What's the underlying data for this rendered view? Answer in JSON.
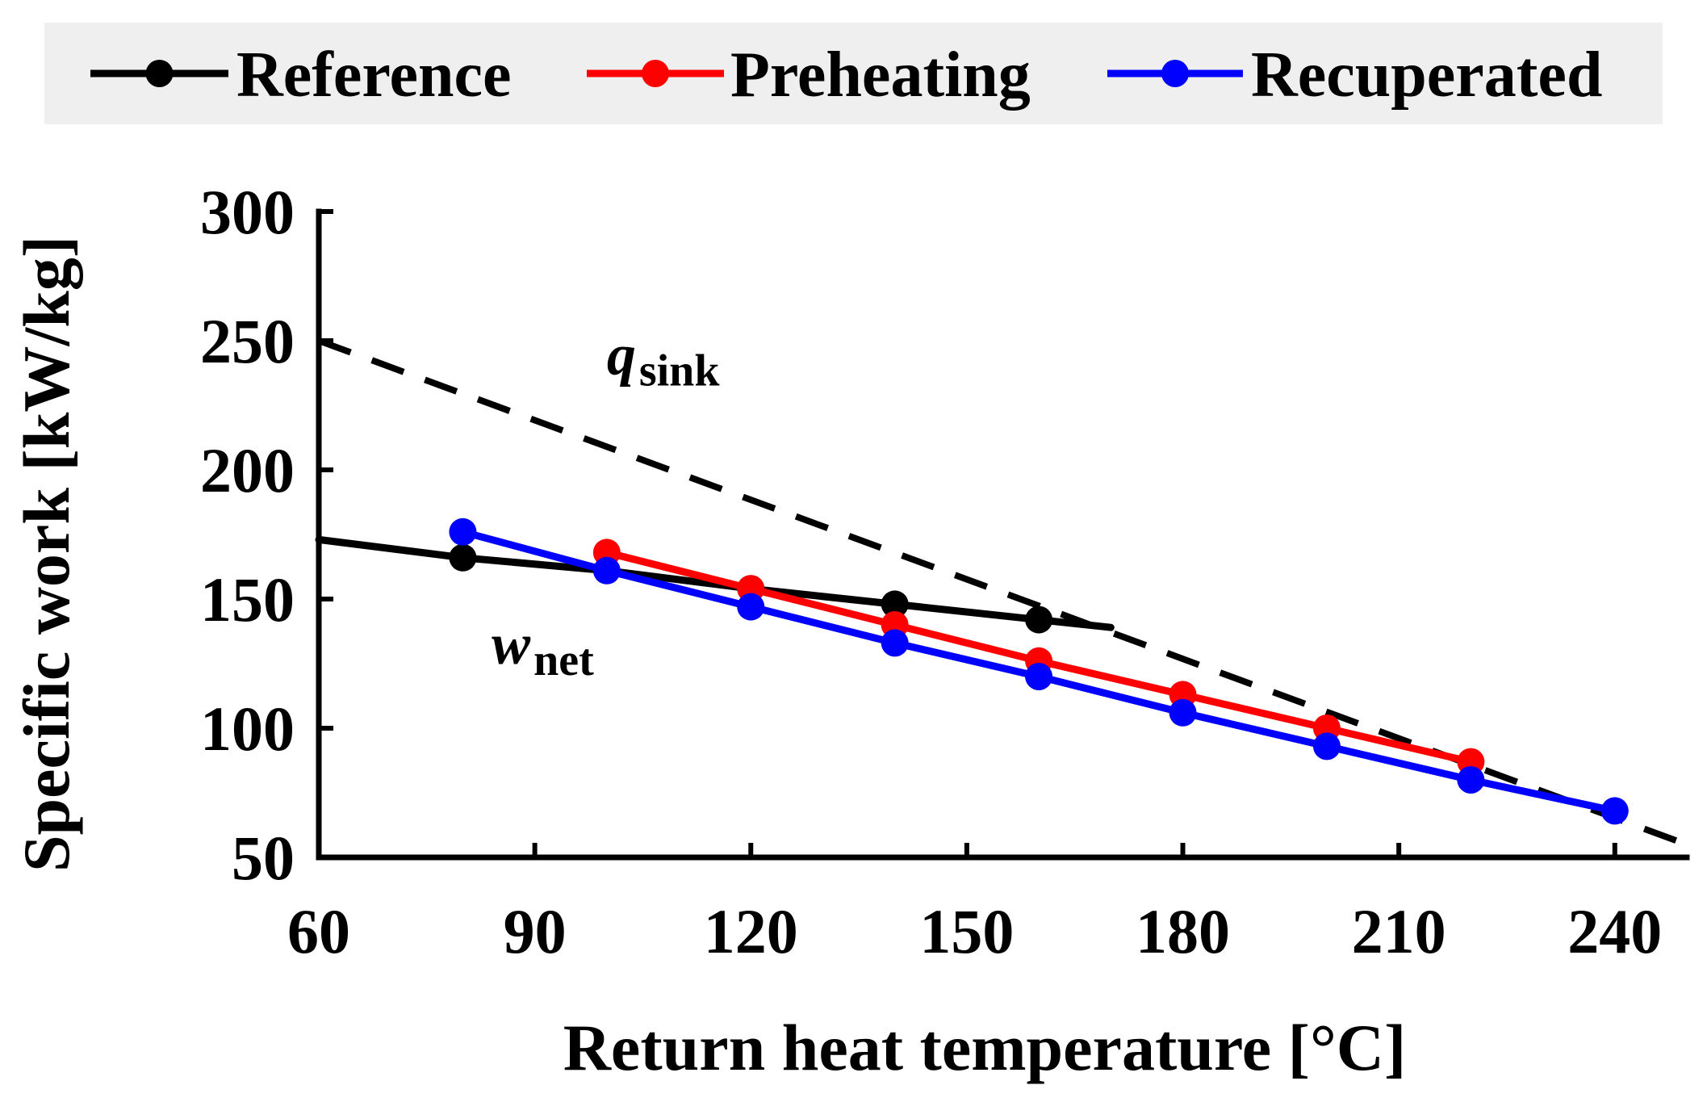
{
  "chart_data": {
    "type": "line",
    "title": "",
    "xlabel": "Return heat temperature [°C]",
    "ylabel": "Specific work [kW/kg]",
    "xlim": [
      60,
      250
    ],
    "ylim": [
      50,
      300
    ],
    "xticks": [
      60,
      90,
      120,
      150,
      180,
      210,
      240
    ],
    "yticks": [
      50,
      100,
      150,
      200,
      250,
      300
    ],
    "xtick_labels": [
      "60",
      "90",
      "120",
      "150",
      "180",
      "210",
      "240"
    ],
    "ytick_labels": [
      "50",
      "100",
      "150",
      "200",
      "250",
      "300"
    ],
    "legend_position": "top",
    "series": [
      {
        "name": "Reference",
        "color": "#000000",
        "marker": "circle",
        "x": [
          60,
          80,
          100,
          120,
          140,
          160,
          170
        ],
        "y": [
          173,
          166,
          161,
          154,
          148,
          142,
          139
        ],
        "marker_indices": [
          1,
          3,
          4,
          5
        ]
      },
      {
        "name": "Preheating",
        "color": "#ff0000",
        "marker": "circle",
        "x": [
          100,
          120,
          140,
          160,
          180,
          200,
          220
        ],
        "y": [
          168,
          154,
          140,
          126,
          113,
          100,
          87
        ],
        "marker_indices": [
          0,
          1,
          2,
          3,
          4,
          5,
          6
        ]
      },
      {
        "name": "Recuperated",
        "color": "#0000ff",
        "marker": "circle",
        "x": [
          80,
          100,
          120,
          140,
          160,
          180,
          200,
          220,
          240
        ],
        "y": [
          176,
          161,
          147,
          133,
          120,
          106,
          93,
          80,
          68
        ],
        "marker_indices": [
          0,
          1,
          2,
          3,
          4,
          5,
          6,
          7,
          8
        ]
      }
    ],
    "reference_line": {
      "name": "q_sink",
      "style": "dashed",
      "color": "#000000",
      "x": [
        60,
        250
      ],
      "y": [
        250,
        55
      ]
    },
    "annotations": [
      {
        "main": "q",
        "sub": "sink",
        "x": 100,
        "y": 237
      },
      {
        "main": "w",
        "sub": "net",
        "x": 84,
        "y": 125
      }
    ]
  }
}
